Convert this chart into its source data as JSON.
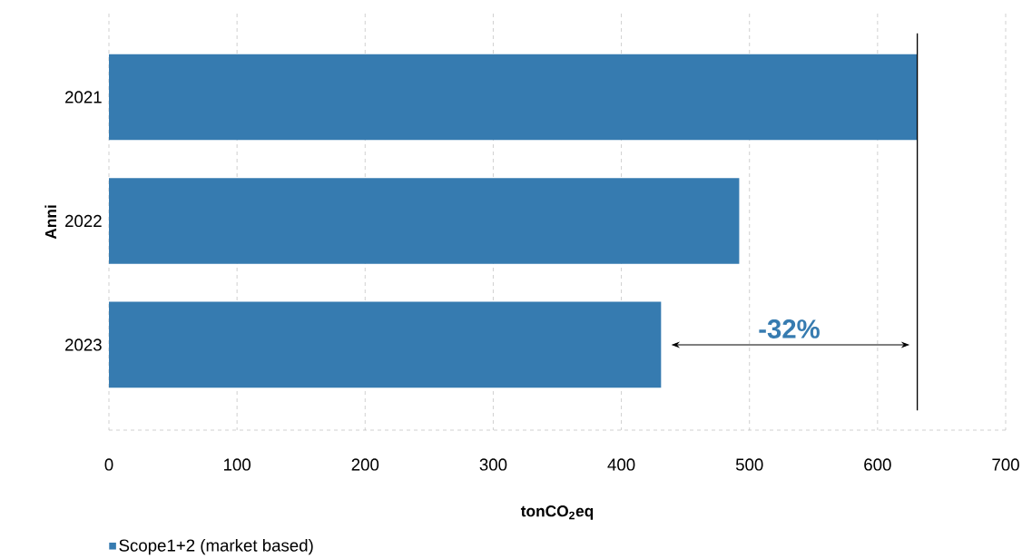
{
  "chart_data": {
    "type": "bar",
    "orientation": "horizontal",
    "categories": [
      "2021",
      "2022",
      "2023"
    ],
    "series": [
      {
        "name": "Scope1+2 (market based)",
        "color": "#367bb0",
        "values": [
          631,
          492,
          431
        ]
      }
    ],
    "xlabel": "tonCO$_{2}$eq",
    "ylabel": "Anni",
    "xlim": [
      0,
      700
    ],
    "xticks": [
      0,
      100,
      200,
      300,
      400,
      500,
      600,
      700
    ],
    "grid": "x",
    "legend": "bottom left",
    "ref_lines": [
      {
        "axis": "x",
        "value": 631,
        "color": "#000000"
      }
    ],
    "annotations": [
      "-32%"
    ]
  }
}
